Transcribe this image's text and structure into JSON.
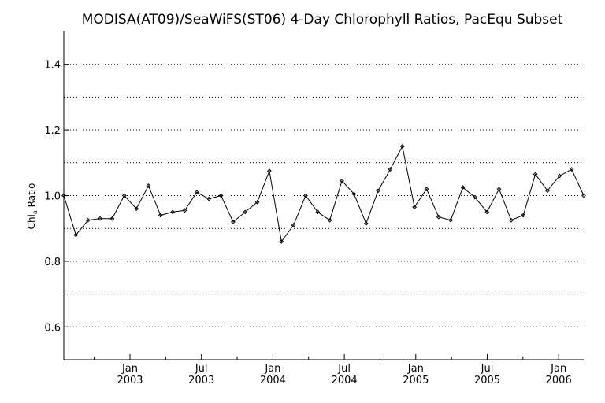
{
  "chart_data": {
    "type": "line",
    "title": "MODISA(AT09)/SeaWiFS(ST06) 4-Day Chlorophyll Ratios, PacEqu Subset",
    "ylabel": {
      "base": "Chl",
      "sub": "a",
      "rest": " Ratio"
    },
    "xlabel": "",
    "ylim": [
      0.5,
      1.5
    ],
    "y_ticks": [
      0.6,
      0.8,
      1.0,
      1.2,
      1.4
    ],
    "y_tick_labels": [
      "0.6",
      "0.8",
      "1.0",
      "1.2",
      "1.4"
    ],
    "y_gridlines": [
      0.6,
      0.7,
      0.8,
      0.9,
      1.0,
      1.1,
      1.2,
      1.3,
      1.4
    ],
    "grid": true,
    "x_tick_months": [
      "Jan",
      "Jul",
      "Jan",
      "Jul",
      "Jan",
      "Jul",
      "Jan"
    ],
    "x_tick_years": [
      "2003",
      "2003",
      "2004",
      "2004",
      "2005",
      "2005",
      "2006"
    ],
    "series": [
      {
        "values": [
          1.0,
          0.88,
          0.925,
          0.93,
          0.93,
          1.0,
          0.96,
          1.03,
          0.94,
          0.95,
          0.955,
          1.01,
          0.99,
          1.0,
          0.92,
          0.95,
          0.98,
          1.075,
          0.86,
          0.91,
          1.0,
          0.95,
          0.925,
          1.045,
          1.005,
          0.915,
          1.015,
          1.08,
          1.15,
          0.965,
          1.02,
          0.935,
          0.925,
          1.025,
          0.995,
          0.95,
          1.02,
          0.925,
          0.94,
          1.065,
          1.015,
          1.06,
          1.08,
          1.0
        ],
        "color": "#000000"
      }
    ]
  }
}
